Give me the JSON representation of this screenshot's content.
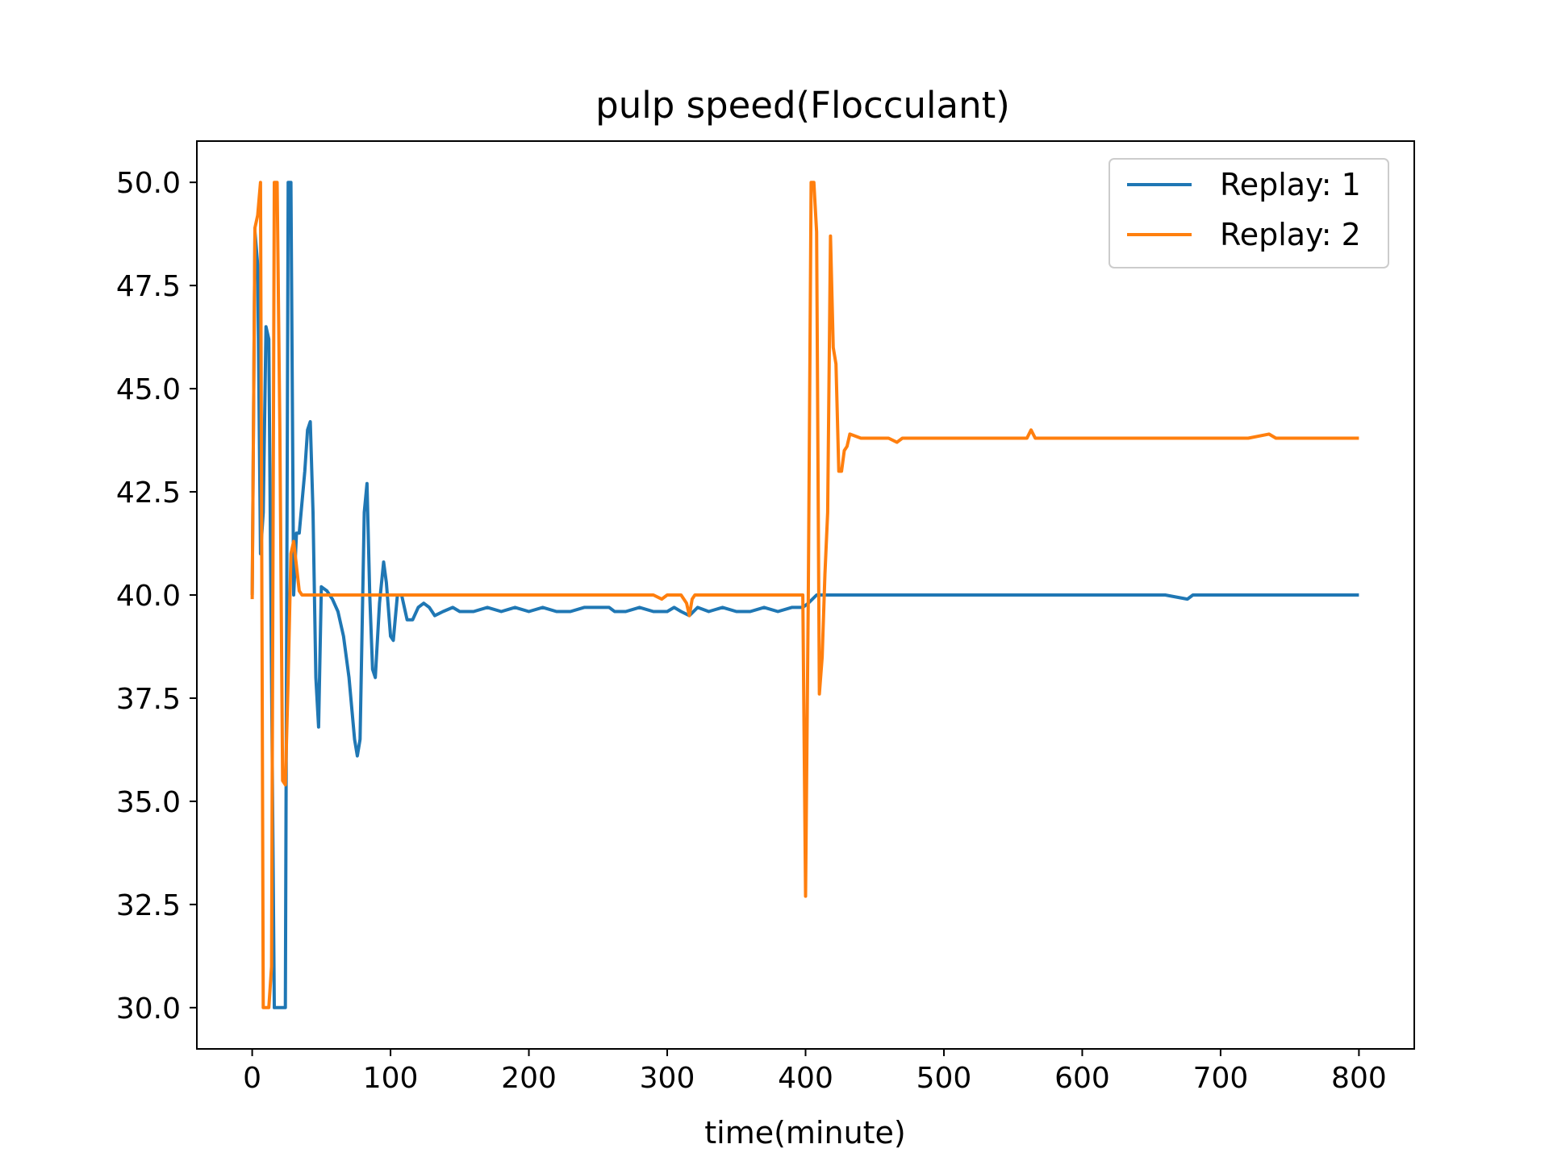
{
  "chart_data": {
    "type": "line",
    "title": "pulp speed(Flocculant)",
    "xlabel": "time(minute)",
    "ylabel": "",
    "xlim": [
      -40,
      840
    ],
    "ylim": [
      29,
      51
    ],
    "xticks": [
      0,
      100,
      200,
      300,
      400,
      500,
      600,
      700,
      800
    ],
    "yticks": [
      30.0,
      32.5,
      35.0,
      37.5,
      40.0,
      42.5,
      45.0,
      47.5,
      50.0
    ],
    "xtick_labels": [
      "0",
      "100",
      "200",
      "300",
      "400",
      "500",
      "600",
      "700",
      "800"
    ],
    "ytick_labels": [
      "30.0",
      "32.5",
      "35.0",
      "37.5",
      "40.0",
      "42.5",
      "45.0",
      "47.5",
      "50.0"
    ],
    "grid": false,
    "legend_position": "top-right",
    "series": [
      {
        "name": "Replay: 1",
        "color": "#1f77b4",
        "points": [
          [
            0,
            40.0
          ],
          [
            2,
            48.8
          ],
          [
            4,
            48.0
          ],
          [
            6,
            41.0
          ],
          [
            8,
            42.0
          ],
          [
            10,
            46.5
          ],
          [
            12,
            46.2
          ],
          [
            14,
            38.0
          ],
          [
            16,
            30.0
          ],
          [
            18,
            30.0
          ],
          [
            20,
            30.0
          ],
          [
            22,
            30.0
          ],
          [
            24,
            30.0
          ],
          [
            26,
            50.0
          ],
          [
            28,
            50.0
          ],
          [
            30,
            40.0
          ],
          [
            32,
            41.5
          ],
          [
            34,
            41.5
          ],
          [
            38,
            43.0
          ],
          [
            40,
            44.0
          ],
          [
            42,
            44.2
          ],
          [
            44,
            42.0
          ],
          [
            46,
            38.0
          ],
          [
            48,
            36.8
          ],
          [
            50,
            40.2
          ],
          [
            54,
            40.1
          ],
          [
            58,
            39.9
          ],
          [
            62,
            39.6
          ],
          [
            66,
            39.0
          ],
          [
            70,
            38.0
          ],
          [
            74,
            36.5
          ],
          [
            76,
            36.1
          ],
          [
            78,
            36.5
          ],
          [
            81,
            42.0
          ],
          [
            83,
            42.7
          ],
          [
            85,
            40.0
          ],
          [
            87,
            38.2
          ],
          [
            89,
            38.0
          ],
          [
            92,
            39.8
          ],
          [
            95,
            40.8
          ],
          [
            97,
            40.3
          ],
          [
            100,
            39.0
          ],
          [
            102,
            38.9
          ],
          [
            105,
            40.0
          ],
          [
            108,
            40.0
          ],
          [
            112,
            39.4
          ],
          [
            116,
            39.4
          ],
          [
            120,
            39.7
          ],
          [
            124,
            39.8
          ],
          [
            128,
            39.7
          ],
          [
            132,
            39.5
          ],
          [
            138,
            39.6
          ],
          [
            145,
            39.7
          ],
          [
            150,
            39.6
          ],
          [
            160,
            39.6
          ],
          [
            170,
            39.7
          ],
          [
            180,
            39.6
          ],
          [
            190,
            39.7
          ],
          [
            200,
            39.6
          ],
          [
            210,
            39.7
          ],
          [
            220,
            39.6
          ],
          [
            230,
            39.6
          ],
          [
            240,
            39.7
          ],
          [
            250,
            39.7
          ],
          [
            258,
            39.7
          ],
          [
            262,
            39.6
          ],
          [
            270,
            39.6
          ],
          [
            280,
            39.7
          ],
          [
            290,
            39.6
          ],
          [
            300,
            39.6
          ],
          [
            305,
            39.7
          ],
          [
            310,
            39.6
          ],
          [
            316,
            39.5
          ],
          [
            322,
            39.7
          ],
          [
            330,
            39.6
          ],
          [
            340,
            39.7
          ],
          [
            350,
            39.6
          ],
          [
            360,
            39.6
          ],
          [
            370,
            39.7
          ],
          [
            380,
            39.6
          ],
          [
            390,
            39.7
          ],
          [
            398,
            39.7
          ],
          [
            402,
            39.8
          ],
          [
            408,
            40.0
          ],
          [
            420,
            40.0
          ],
          [
            440,
            40.0
          ],
          [
            460,
            40.0
          ],
          [
            480,
            40.0
          ],
          [
            500,
            40.0
          ],
          [
            520,
            40.0
          ],
          [
            540,
            40.0
          ],
          [
            560,
            40.0
          ],
          [
            580,
            40.0
          ],
          [
            600,
            40.0
          ],
          [
            620,
            40.0
          ],
          [
            640,
            40.0
          ],
          [
            660,
            40.0
          ],
          [
            676,
            39.9
          ],
          [
            680,
            40.0
          ],
          [
            700,
            40.0
          ],
          [
            720,
            40.0
          ],
          [
            740,
            40.0
          ],
          [
            760,
            40.0
          ],
          [
            780,
            40.0
          ],
          [
            800,
            40.0
          ]
        ]
      },
      {
        "name": "Replay: 2",
        "color": "#ff7f0e",
        "points": [
          [
            0,
            39.9
          ],
          [
            2,
            48.9
          ],
          [
            4,
            49.2
          ],
          [
            6,
            50.0
          ],
          [
            8,
            30.0
          ],
          [
            10,
            30.0
          ],
          [
            12,
            30.0
          ],
          [
            14,
            31.0
          ],
          [
            16,
            50.0
          ],
          [
            18,
            50.0
          ],
          [
            20,
            44.0
          ],
          [
            22,
            35.5
          ],
          [
            24,
            35.4
          ],
          [
            26,
            38.0
          ],
          [
            28,
            41.0
          ],
          [
            30,
            41.3
          ],
          [
            32,
            40.7
          ],
          [
            34,
            40.1
          ],
          [
            36,
            40.0
          ],
          [
            40,
            40.0
          ],
          [
            50,
            40.0
          ],
          [
            60,
            40.0
          ],
          [
            70,
            40.0
          ],
          [
            80,
            40.0
          ],
          [
            90,
            40.0
          ],
          [
            100,
            40.0
          ],
          [
            110,
            40.0
          ],
          [
            120,
            40.0
          ],
          [
            130,
            40.0
          ],
          [
            140,
            40.0
          ],
          [
            150,
            40.0
          ],
          [
            160,
            40.0
          ],
          [
            170,
            40.0
          ],
          [
            180,
            40.0
          ],
          [
            190,
            40.0
          ],
          [
            200,
            40.0
          ],
          [
            210,
            40.0
          ],
          [
            220,
            40.0
          ],
          [
            230,
            40.0
          ],
          [
            240,
            40.0
          ],
          [
            250,
            40.0
          ],
          [
            260,
            40.0
          ],
          [
            270,
            40.0
          ],
          [
            280,
            40.0
          ],
          [
            290,
            40.0
          ],
          [
            296,
            39.9
          ],
          [
            300,
            40.0
          ],
          [
            310,
            40.0
          ],
          [
            314,
            39.8
          ],
          [
            316,
            39.5
          ],
          [
            318,
            39.9
          ],
          [
            320,
            40.0
          ],
          [
            330,
            40.0
          ],
          [
            340,
            40.0
          ],
          [
            350,
            40.0
          ],
          [
            360,
            40.0
          ],
          [
            370,
            40.0
          ],
          [
            380,
            40.0
          ],
          [
            390,
            40.0
          ],
          [
            396,
            40.0
          ],
          [
            398,
            40.0
          ],
          [
            400,
            32.7
          ],
          [
            402,
            40.0
          ],
          [
            404,
            50.0
          ],
          [
            406,
            50.0
          ],
          [
            408,
            48.8
          ],
          [
            410,
            37.6
          ],
          [
            412,
            38.5
          ],
          [
            414,
            40.5
          ],
          [
            416,
            42.0
          ],
          [
            418,
            48.7
          ],
          [
            420,
            46.0
          ],
          [
            422,
            45.6
          ],
          [
            424,
            43.0
          ],
          [
            426,
            43.0
          ],
          [
            428,
            43.5
          ],
          [
            430,
            43.6
          ],
          [
            432,
            43.9
          ],
          [
            440,
            43.8
          ],
          [
            450,
            43.8
          ],
          [
            460,
            43.8
          ],
          [
            466,
            43.7
          ],
          [
            470,
            43.8
          ],
          [
            480,
            43.8
          ],
          [
            490,
            43.8
          ],
          [
            500,
            43.8
          ],
          [
            510,
            43.8
          ],
          [
            520,
            43.8
          ],
          [
            540,
            43.8
          ],
          [
            560,
            43.8
          ],
          [
            563,
            44.0
          ],
          [
            566,
            43.8
          ],
          [
            580,
            43.8
          ],
          [
            600,
            43.8
          ],
          [
            620,
            43.8
          ],
          [
            640,
            43.8
          ],
          [
            660,
            43.8
          ],
          [
            680,
            43.8
          ],
          [
            700,
            43.8
          ],
          [
            720,
            43.8
          ],
          [
            735,
            43.9
          ],
          [
            740,
            43.8
          ],
          [
            760,
            43.8
          ],
          [
            780,
            43.8
          ],
          [
            800,
            43.8
          ]
        ]
      }
    ]
  }
}
